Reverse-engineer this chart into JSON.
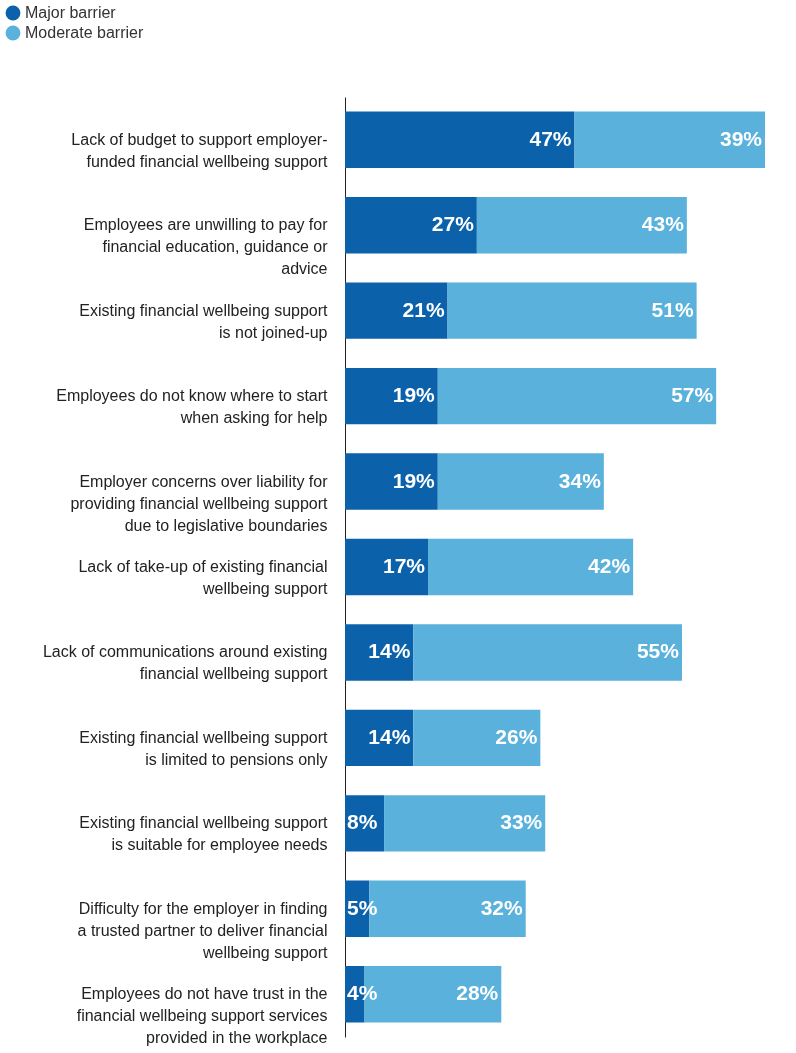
{
  "chart_data": {
    "type": "bar",
    "orientation": "horizontal",
    "stacked": true,
    "legend": "top left",
    "grid": false,
    "categories": [
      "Lack of budget to support employer-funded financial wellbeing support",
      "Employees are unwilling to pay for financial education, guidance or advice",
      "Existing financial wellbeing support is not joined-up",
      "Employees do not know where to start when asking for help",
      "Employer concerns over liability for providing financial wellbeing support due to legislative boundaries",
      "Lack of take-up of existing financial wellbeing support",
      "Lack of communications around existing financial wellbeing support",
      "Existing financial wellbeing support is limited to pensions only",
      "Existing financial wellbeing support is suitable for employee needs",
      "Difficulty for the employer in finding a trusted partner to deliver financial wellbeing support",
      "Employees do not have trust in the financial wellbeing support services provided in the workplace"
    ],
    "series": [
      {
        "name": "Major barrier",
        "color": "#0b62ab",
        "values": [
          47,
          27,
          21,
          19,
          19,
          17,
          14,
          14,
          8,
          5,
          4
        ],
        "value_labels": [
          "47%",
          "27%",
          "21%",
          "19%",
          "19%",
          "17%",
          "14%",
          "14%",
          "8%",
          "5%",
          "4%"
        ]
      },
      {
        "name": "Moderate barrier",
        "color": "#5ab1dc",
        "values": [
          39,
          43,
          51,
          57,
          34,
          42,
          55,
          26,
          33,
          32,
          28
        ],
        "value_labels": [
          "39%",
          "43%",
          "51%",
          "57%",
          "34%",
          "42%",
          "55%",
          "26%",
          "33%",
          "32%",
          "28%"
        ]
      }
    ]
  }
}
